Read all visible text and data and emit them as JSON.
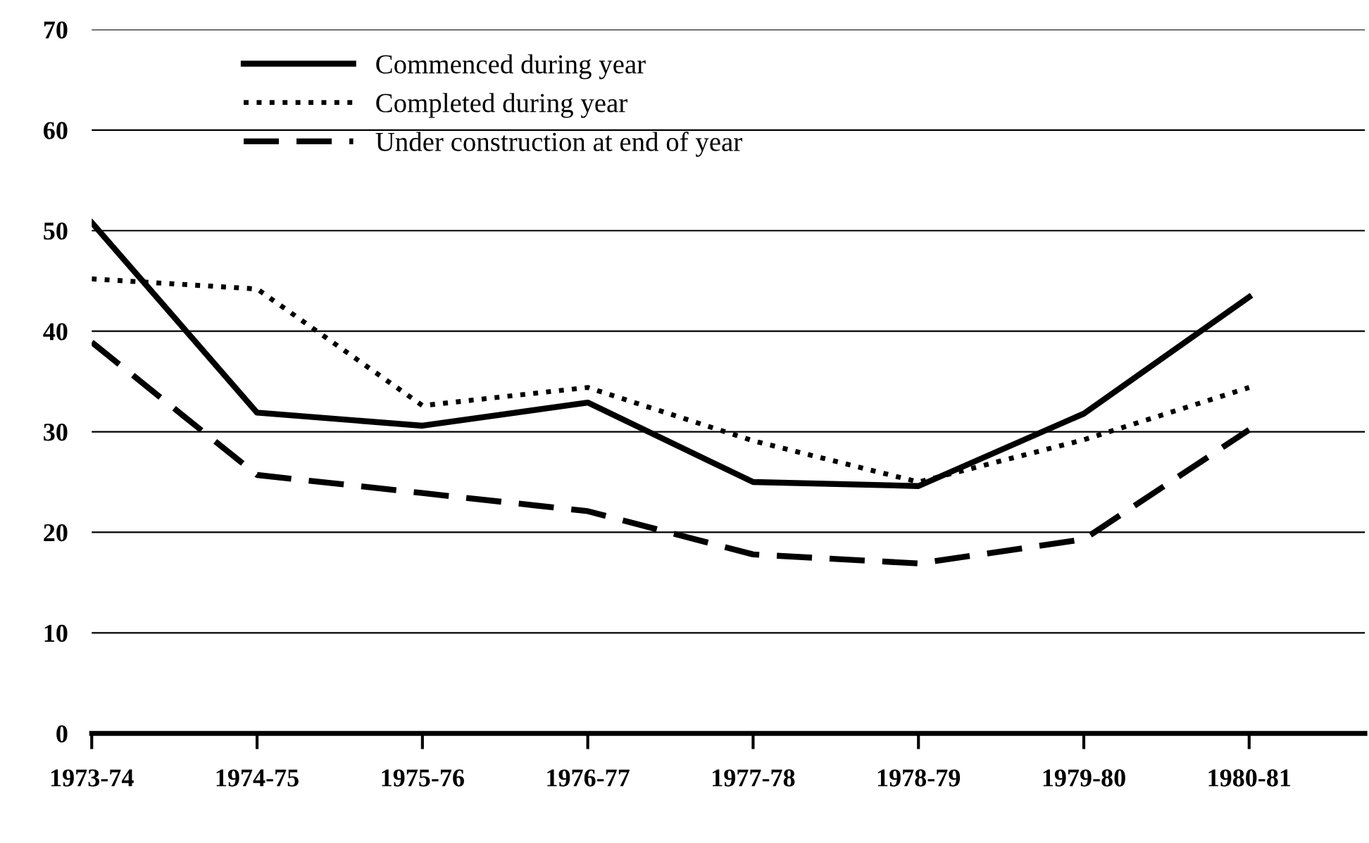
{
  "chart_data": {
    "type": "line",
    "categories": [
      "1973-74",
      "1974-75",
      "1975-76",
      "1976-77",
      "1977-78",
      "1978-79",
      "1979-80",
      "1980-81"
    ],
    "series": [
      {
        "name": "Commenced during year",
        "color": "#000000",
        "line_style": "solid",
        "values": [
          50.8,
          31.9,
          30.6,
          32.9,
          25.0,
          24.6,
          31.8,
          43.4
        ]
      },
      {
        "name": "Completed during year",
        "color": "#000000",
        "line_style": "dotted",
        "values": [
          45.2,
          44.2,
          32.6,
          34.4,
          29.1,
          25.0,
          29.2,
          34.4
        ]
      },
      {
        "name": "Under construction at end of year",
        "color": "#000000",
        "line_style": "dashed",
        "values": [
          38.9,
          25.7,
          23.9,
          22.1,
          17.8,
          16.9,
          19.3,
          30.2
        ]
      }
    ],
    "ylim": [
      0,
      70
    ],
    "yticks": [
      0,
      10,
      20,
      30,
      40,
      50,
      60,
      70
    ],
    "grid": "y",
    "legend": "top left",
    "marker": "none"
  }
}
